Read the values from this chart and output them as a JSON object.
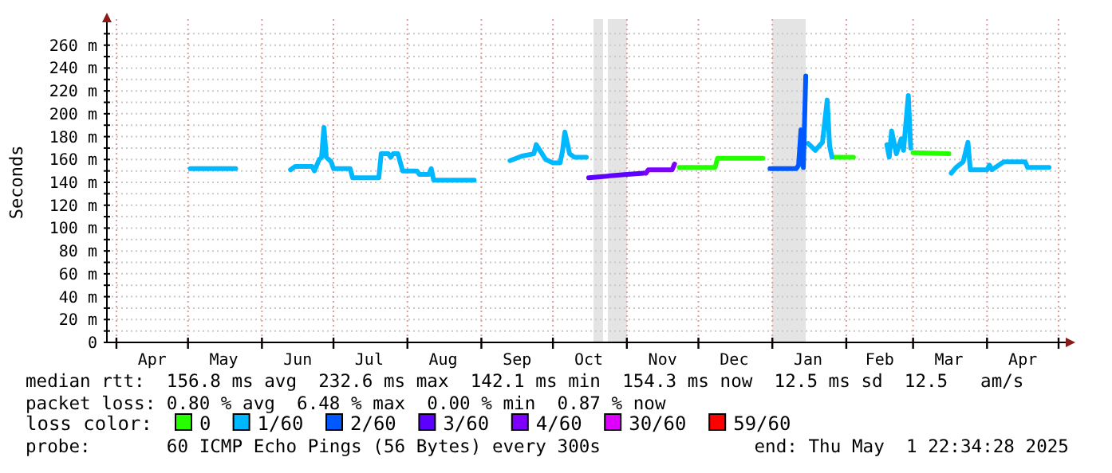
{
  "chart_data": {
    "type": "line",
    "ylabel": "Seconds",
    "legend_title": "loss color:",
    "legend": "bottom",
    "grid": true,
    "marker": "none",
    "line_style": "solid",
    "xlim": [
      "2024-03-28",
      "2025-05-04"
    ],
    "xticks": [
      {
        "value": "2024-04-01",
        "label": null
      },
      {
        "value": "2024-04-16",
        "label": "Apr"
      },
      {
        "value": "2024-05-01",
        "label": null
      },
      {
        "value": "2024-05-16",
        "label": "May"
      },
      {
        "value": "2024-06-01",
        "label": null
      },
      {
        "value": "2024-06-16",
        "label": "Jun"
      },
      {
        "value": "2024-07-01",
        "label": null
      },
      {
        "value": "2024-07-16",
        "label": "Jul"
      },
      {
        "value": "2024-08-01",
        "label": null
      },
      {
        "value": "2024-08-16",
        "label": "Aug"
      },
      {
        "value": "2024-09-01",
        "label": null
      },
      {
        "value": "2024-09-16",
        "label": "Sep"
      },
      {
        "value": "2024-10-01",
        "label": null
      },
      {
        "value": "2024-10-16",
        "label": "Oct"
      },
      {
        "value": "2024-11-01",
        "label": null
      },
      {
        "value": "2024-11-16",
        "label": "Nov"
      },
      {
        "value": "2024-12-01",
        "label": null
      },
      {
        "value": "2024-12-16",
        "label": "Dec"
      },
      {
        "value": "2025-01-01",
        "label": null
      },
      {
        "value": "2025-01-16",
        "label": "Jan"
      },
      {
        "value": "2025-02-01",
        "label": null
      },
      {
        "value": "2025-02-15",
        "label": "Feb"
      },
      {
        "value": "2025-03-01",
        "label": null
      },
      {
        "value": "2025-03-16",
        "label": "Mar"
      },
      {
        "value": "2025-04-01",
        "label": null
      },
      {
        "value": "2025-04-16",
        "label": "Apr"
      },
      {
        "value": "2025-05-01",
        "label": null
      }
    ],
    "ylim": [
      0,
      280
    ],
    "yticks": [
      0,
      {
        "value": 10,
        "label": null
      },
      {
        "value": 20,
        "label": "20 m"
      },
      {
        "value": 30,
        "label": null
      },
      {
        "value": 40,
        "label": "40 m"
      },
      {
        "value": 50,
        "label": null
      },
      {
        "value": 60,
        "label": "60 m"
      },
      {
        "value": 70,
        "label": null
      },
      {
        "value": 80,
        "label": "80 m"
      },
      {
        "value": 90,
        "label": null
      },
      {
        "value": 100,
        "label": "100 m"
      },
      {
        "value": 110,
        "label": null
      },
      {
        "value": 120,
        "label": "120 m"
      },
      {
        "value": 130,
        "label": null
      },
      {
        "value": 140,
        "label": "140 m"
      },
      {
        "value": 150,
        "label": null
      },
      {
        "value": 160,
        "label": "160 m"
      },
      {
        "value": 170,
        "label": null
      },
      {
        "value": 180,
        "label": "180 m"
      },
      {
        "value": 190,
        "label": null
      },
      {
        "value": 200,
        "label": "200 m"
      },
      {
        "value": 210,
        "label": null
      },
      {
        "value": 220,
        "label": "220 m"
      },
      {
        "value": 230,
        "label": null
      },
      {
        "value": 240,
        "label": "240 m"
      },
      {
        "value": 250,
        "label": null
      },
      {
        "value": 260,
        "label": "260 m"
      },
      {
        "value": 270,
        "label": null
      }
    ],
    "bands": [
      {
        "axis": "x",
        "from": "2024-10-18",
        "to": "2024-10-22",
        "color": "#e4e4e4"
      },
      {
        "axis": "x",
        "from": "2024-10-24",
        "to": "2024-11-01",
        "color": "#e4e4e4"
      },
      {
        "axis": "x",
        "from": "2025-01-01",
        "to": "2025-01-15",
        "color": "#e4e4e4"
      }
    ],
    "series": [
      {
        "name": "0",
        "color": "#26ff00",
        "x": [
          "2024-11-23",
          "2024-12-08",
          "2024-12-09",
          "2024-12-28",
          "2025-01-05",
          "2025-01-27",
          "2025-02-04",
          "2025-02-15",
          "2025-03-01",
          "2025-03-16"
        ],
        "values": [
          153,
          153,
          161,
          161,
          null,
          162,
          162,
          null,
          166,
          165
        ]
      },
      {
        "name": "1/60",
        "color": "#00b8ff",
        "x": [
          "2024-05-02",
          "2024-05-21",
          "2024-06-01",
          "2024-06-13",
          "2024-06-15",
          "2024-06-22",
          "2024-06-23",
          "2024-06-25",
          "2024-06-26",
          "2024-06-27",
          "2024-06-28",
          "2024-06-30",
          "2024-07-01",
          "2024-07-08",
          "2024-07-09",
          "2024-07-20",
          "2024-07-21",
          "2024-07-24",
          "2024-07-25",
          "2024-07-26",
          "2024-07-28",
          "2024-07-30",
          "2024-08-05",
          "2024-08-06",
          "2024-08-09",
          "2024-08-10",
          "2024-08-11",
          "2024-08-12",
          "2024-08-29",
          "2024-09-05",
          "2024-09-13",
          "2024-09-18",
          "2024-09-23",
          "2024-09-24",
          "2024-09-28",
          "2024-10-01",
          "2024-10-04",
          "2024-10-05",
          "2024-10-06",
          "2024-10-08",
          "2024-10-10",
          "2024-10-15",
          "2024-12-01",
          "2025-01-16",
          "2025-01-19",
          "2025-01-22",
          "2025-01-24",
          "2025-01-25",
          "2025-01-26",
          "2025-02-10",
          "2025-02-18",
          "2025-02-19",
          "2025-02-20",
          "2025-02-22",
          "2025-02-24",
          "2025-02-25",
          "2025-02-27",
          "2025-02-28",
          "2025-03-05",
          "2025-03-17",
          "2025-03-19",
          "2025-03-22",
          "2025-03-24",
          "2025-03-25",
          "2025-04-01",
          "2025-04-02",
          "2025-04-03",
          "2025-04-08",
          "2025-04-17",
          "2025-04-18",
          "2025-04-27"
        ],
        "values": [
          152,
          152,
          null,
          151,
          154,
          154,
          150,
          160,
          162,
          188,
          162,
          158,
          152,
          152,
          144,
          144,
          165,
          165,
          162,
          165,
          165,
          150,
          150,
          147,
          147,
          147,
          152,
          142,
          142,
          null,
          159,
          163,
          165,
          173,
          160,
          157,
          157,
          167,
          184,
          165,
          162,
          162,
          null,
          174,
          168,
          175,
          212,
          172,
          162,
          null,
          173,
          162,
          185,
          165,
          178,
          168,
          216,
          170,
          null,
          148,
          153,
          158,
          175,
          151,
          151,
          155,
          151,
          158,
          158,
          153,
          153
        ]
      },
      {
        "name": "2/60",
        "color": "#0059ff",
        "x": [
          "2024-12-31",
          "2025-01-11",
          "2025-01-12",
          "2025-01-13",
          "2025-01-14",
          "2025-01-15"
        ],
        "values": [
          152,
          152,
          155,
          186,
          153,
          233
        ]
      },
      {
        "name": "3/60",
        "color": "#5e00ff",
        "x": [
          "2024-10-16",
          "2024-11-01",
          "2024-11-08"
        ],
        "values": [
          144,
          147,
          148
        ]
      },
      {
        "name": "4/60",
        "color": "#7e00ff",
        "x": [
          "2024-11-09",
          "2024-11-10",
          "2024-11-20",
          "2024-11-21"
        ],
        "values": [
          148,
          151,
          151,
          156
        ]
      },
      {
        "name": "30/60",
        "color": "#dd00ff"
      },
      {
        "name": "59/60",
        "color": "#ff0000"
      }
    ],
    "annotations": [
      "median rtt:  156.8 ms avg  232.6 ms max  142.1 ms min  154.3 ms now  12.5 ms sd  12.5   am/s",
      "packet loss: 0.80 % avg  6.48 % max  0.00 % min  0.87 % now",
      "probe:       60 ICMP Echo Pings (56 Bytes) every 300s",
      "end: Thu May  1 22:34:28 2025"
    ]
  }
}
